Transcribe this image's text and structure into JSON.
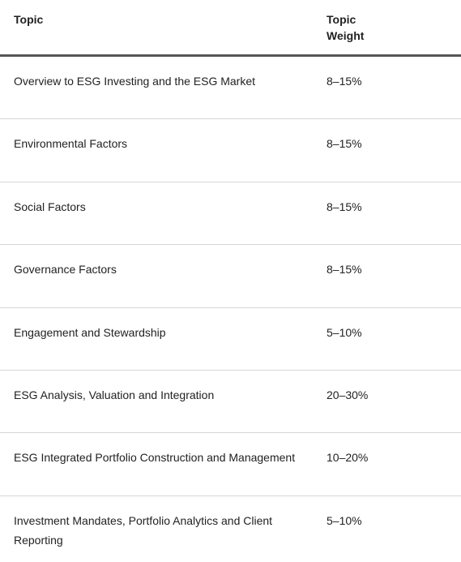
{
  "header": {
    "topic": "Topic",
    "weight_line1": "Topic",
    "weight_line2": "Weight"
  },
  "rows": [
    {
      "topic": "Overview to ESG Investing and the ESG Market",
      "weight": "8–15%"
    },
    {
      "topic": "Environmental Factors",
      "weight": "8–15%"
    },
    {
      "topic": "Social Factors",
      "weight": "8–15%"
    },
    {
      "topic": "Governance Factors",
      "weight": "8–15%"
    },
    {
      "topic": "Engagement and Stewardship",
      "weight": "5–10%"
    },
    {
      "topic": "ESG Analysis, Valuation and Integration",
      "weight": "20–30%"
    },
    {
      "topic": "ESG Integrated Portfolio Construction and Management",
      "weight": "10–20%"
    },
    {
      "topic": "Investment Mandates, Portfolio Analytics and Client Reporting",
      "weight": "5–10%"
    }
  ]
}
